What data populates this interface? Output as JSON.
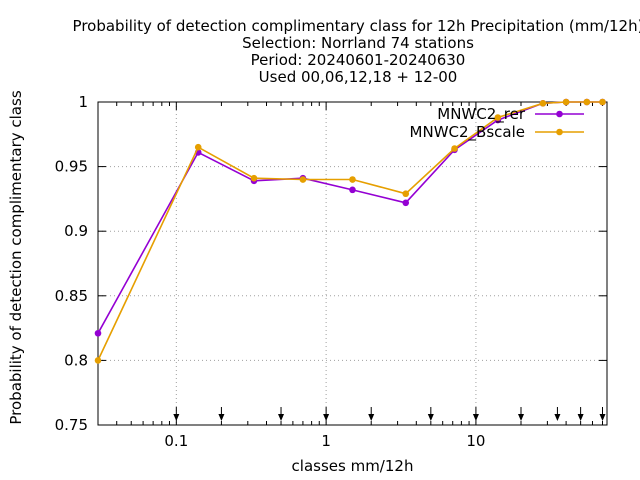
{
  "chart_data": {
    "type": "line",
    "title_lines": [
      "Probability of detection complimentary class  for 12h Precipitation (mm/12h)",
      "Selection: Norrland     74 stations",
      "Period: 20240601-20240630",
      "Used 00,06,12,18 + 12-00"
    ],
    "xlabel": "classes mm/12h",
    "ylabel": "Probability of detection complimentary class",
    "xscale": "log",
    "xlim": [
      0.03,
      75
    ],
    "ylim": [
      0.75,
      1.0
    ],
    "x_ticks": [
      {
        "value": 0.1,
        "label": "0.1"
      },
      {
        "value": 1,
        "label": "1"
      },
      {
        "value": 10,
        "label": "10"
      }
    ],
    "y_ticks": [
      {
        "value": 0.75,
        "label": "0.75"
      },
      {
        "value": 0.8,
        "label": "0.8"
      },
      {
        "value": 0.85,
        "label": "0.85"
      },
      {
        "value": 0.9,
        "label": "0.9"
      },
      {
        "value": 0.95,
        "label": "0.95"
      },
      {
        "value": 1.0,
        "label": "1"
      }
    ],
    "grid": true,
    "legend_position": "top-right",
    "threshold_markers": [
      0.1,
      0.2,
      0.5,
      1,
      2,
      5,
      10,
      20,
      35,
      50,
      70
    ],
    "series": [
      {
        "name": "MNWC2_rer",
        "color": "#9400d3",
        "x": [
          0.03,
          0.14,
          0.33,
          0.7,
          1.5,
          3.4,
          7.2,
          14,
          28,
          40,
          55,
          70
        ],
        "y": [
          0.821,
          0.961,
          0.939,
          0.941,
          0.932,
          0.922,
          0.963,
          0.986,
          0.999,
          1.0,
          1.0,
          1.0
        ]
      },
      {
        "name": "MNWC2_Bscale",
        "color": "#e69f00",
        "x": [
          0.03,
          0.14,
          0.33,
          0.7,
          1.5,
          3.4,
          7.2,
          14,
          28,
          40,
          55,
          70
        ],
        "y": [
          0.8,
          0.965,
          0.941,
          0.94,
          0.94,
          0.929,
          0.964,
          0.988,
          0.999,
          1.0,
          1.0,
          1.0
        ]
      }
    ]
  }
}
